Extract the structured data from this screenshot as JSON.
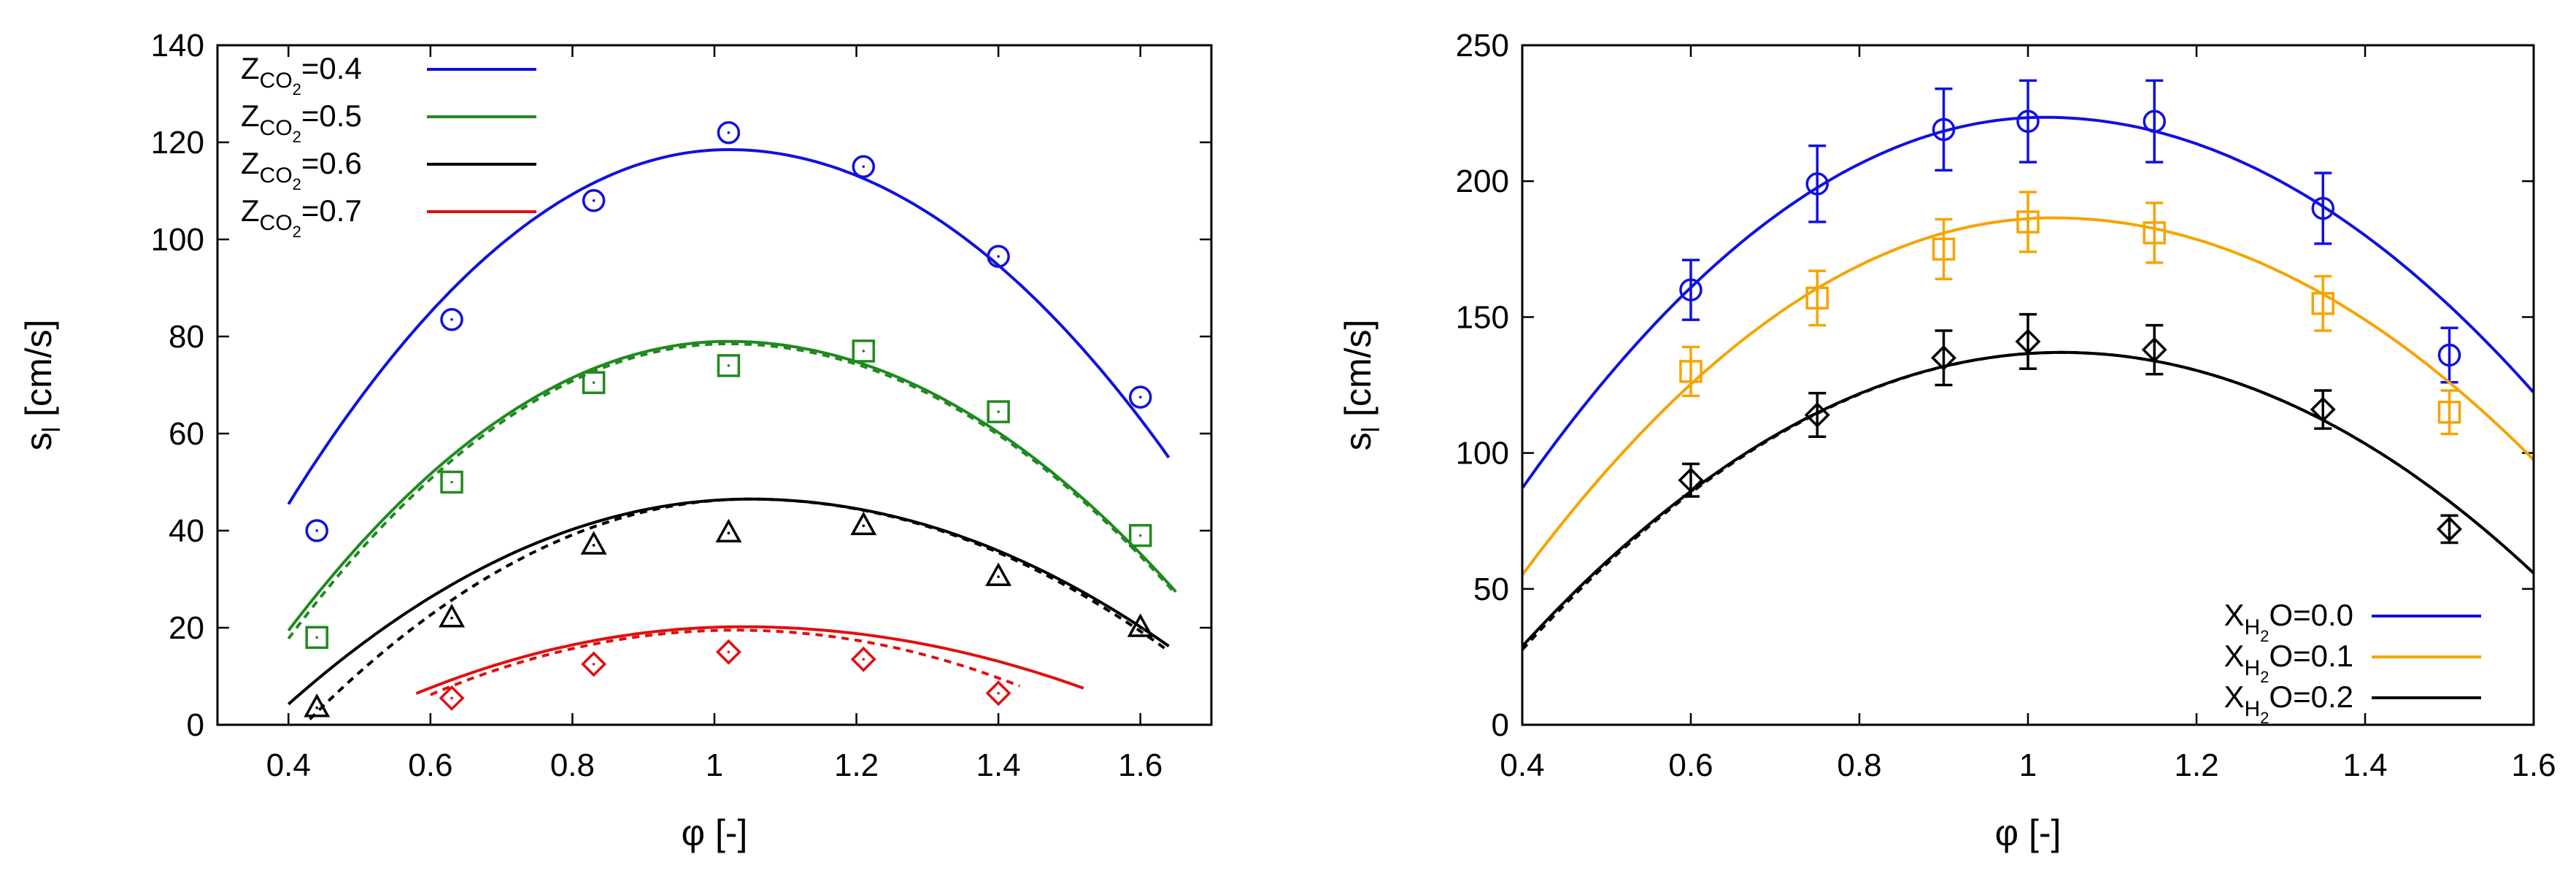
{
  "chart_data": [
    {
      "type": "line",
      "title": "",
      "xlabel": "φ [-]",
      "ylabel_main": "s",
      "ylabel_sub": "l",
      "ylabel_unit": " [cm/s]",
      "xlim": [
        0.3,
        1.7
      ],
      "ylim": [
        0,
        140
      ],
      "xticks": [
        "0.4",
        "0.6",
        "0.8",
        "1",
        "1.2",
        "1.4",
        "1.6"
      ],
      "yticks": [
        "0",
        "20",
        "40",
        "60",
        "80",
        "100",
        "120",
        "140"
      ],
      "legend_position": "top-left",
      "series": [
        {
          "name": "Z_CO2=0.4",
          "legend_pre": "Z",
          "legend_sub": "CO",
          "legend_subsub": "2",
          "legend_post": "=0.4",
          "color": "#1010e0",
          "marker": "circle",
          "fit": {
            "peak_x": 1.02,
            "peak_y": 118.5,
            "curv_left": 190,
            "curv_right": 165,
            "x_range": [
              0.4,
              1.64
            ]
          },
          "dashed_fit": null,
          "points": [
            [
              0.44,
              40
            ],
            [
              0.63,
              83.5
            ],
            [
              0.83,
              108
            ],
            [
              1.02,
              122
            ],
            [
              1.21,
              115
            ],
            [
              1.4,
              96.5
            ],
            [
              1.6,
              67.5
            ]
          ]
        },
        {
          "name": "Z_CO2=0.5",
          "legend_pre": "Z",
          "legend_sub": "CO",
          "legend_subsub": "2",
          "legend_post": "=0.5",
          "color": "#208a20",
          "marker": "square",
          "fit": {
            "peak_x": 1.02,
            "peak_y": 79,
            "curv_left": 155,
            "curv_right": 130,
            "x_range": [
              0.4,
              1.65
            ]
          },
          "dashed_fit": {
            "peak_x": 1.02,
            "peak_y": 78.5,
            "curv_left": 158,
            "curv_right": 130,
            "x_range": [
              0.4,
              1.65
            ]
          },
          "points": [
            [
              0.44,
              18
            ],
            [
              0.63,
              50
            ],
            [
              0.83,
              70.5
            ],
            [
              1.02,
              74
            ],
            [
              1.21,
              77
            ],
            [
              1.4,
              64.5
            ],
            [
              1.6,
              39
            ]
          ]
        },
        {
          "name": "Z_CO2=0.6",
          "legend_pre": "Z",
          "legend_sub": "CO",
          "legend_subsub": "2",
          "legend_post": "=0.6",
          "color": "#000000",
          "marker": "triangle",
          "fit": {
            "peak_x": 1.05,
            "peak_y": 46.5,
            "curv_left": 100,
            "curv_right": 87,
            "x_range": [
              0.4,
              1.64
            ]
          },
          "dashed_fit": {
            "peak_x": 1.05,
            "peak_y": 46.5,
            "curv_left": 118,
            "curv_right": 90,
            "x_range": [
              0.43,
              1.64
            ]
          },
          "points": [
            [
              0.44,
              3.5
            ],
            [
              0.63,
              22
            ],
            [
              0.83,
              37
            ],
            [
              1.02,
              39.5
            ],
            [
              1.21,
              41
            ],
            [
              1.4,
              30.5
            ],
            [
              1.6,
              20
            ]
          ]
        },
        {
          "name": "Z_CO2=0.7",
          "legend_pre": "Z",
          "legend_sub": "CO",
          "legend_subsub": "2",
          "legend_post": "=0.7",
          "color": "#e01010",
          "marker": "diamond",
          "fit": {
            "peak_x": 1.04,
            "peak_y": 20.2,
            "curv_left": 65,
            "curv_right": 55,
            "x_range": [
              0.58,
              1.52
            ]
          },
          "dashed_fit": {
            "peak_x": 1.03,
            "peak_y": 19.5,
            "curv_left": 72,
            "curv_right": 72,
            "x_range": [
              0.6,
              1.43
            ]
          },
          "points": [
            [
              0.63,
              5.5
            ],
            [
              0.83,
              12.5
            ],
            [
              1.02,
              15
            ],
            [
              1.21,
              13.5
            ],
            [
              1.4,
              6.5
            ]
          ]
        }
      ]
    },
    {
      "type": "line",
      "title": "",
      "xlabel": "φ [-]",
      "ylabel_main": "s",
      "ylabel_sub": "l",
      "ylabel_unit": " [cm/s]",
      "xlim": [
        0.4,
        1.6
      ],
      "ylim": [
        0,
        250
      ],
      "xticks": [
        "0.4",
        "0.6",
        "0.8",
        "1",
        "1.2",
        "1.4",
        "1.6"
      ],
      "yticks": [
        "0",
        "50",
        "100",
        "150",
        "200",
        "250"
      ],
      "legend_position": "bottom-right",
      "series": [
        {
          "name": "X_H2O=0.0",
          "legend_pre": "X",
          "legend_sub": "H",
          "legend_subsub": "2",
          "legend_post": "O=0.0",
          "color": "#1010e0",
          "marker": "circle",
          "fit": {
            "peak_x": 1.02,
            "peak_y": 223.5,
            "curv_left": 355,
            "curv_right": 301,
            "x_range": [
              0.4,
              1.6
            ]
          },
          "dashed_fit": null,
          "points": [
            {
              "x": 0.6,
              "y": 160,
              "err": 11
            },
            {
              "x": 0.75,
              "y": 199,
              "err": 14
            },
            {
              "x": 0.9,
              "y": 219,
              "err": 15
            },
            {
              "x": 1.0,
              "y": 222,
              "err": 15
            },
            {
              "x": 1.15,
              "y": 222,
              "err": 15
            },
            {
              "x": 1.35,
              "y": 190,
              "err": 13
            },
            {
              "x": 1.5,
              "y": 136,
              "err": 10
            }
          ]
        },
        {
          "name": "X_H2O=0.1",
          "legend_pre": "X",
          "legend_sub": "H",
          "legend_subsub": "2",
          "legend_post": "O=0.1",
          "color": "#f5a400",
          "marker": "square",
          "fit": {
            "peak_x": 1.03,
            "peak_y": 186.5,
            "curv_left": 331,
            "curv_right": 274,
            "x_range": [
              0.4,
              1.6
            ]
          },
          "dashed_fit": null,
          "points": [
            {
              "x": 0.6,
              "y": 130,
              "err": 9
            },
            {
              "x": 0.75,
              "y": 157,
              "err": 10
            },
            {
              "x": 0.9,
              "y": 175,
              "err": 11
            },
            {
              "x": 1.0,
              "y": 185,
              "err": 11
            },
            {
              "x": 1.15,
              "y": 181,
              "err": 11
            },
            {
              "x": 1.35,
              "y": 155,
              "err": 10
            },
            {
              "x": 1.5,
              "y": 115,
              "err": 8
            }
          ]
        },
        {
          "name": "X_H2O=0.2",
          "legend_pre": "X",
          "legend_sub": "H",
          "legend_subsub": "2",
          "legend_post": "O=0.2",
          "color": "#000000",
          "marker": "diamond",
          "fit": {
            "peak_x": 1.04,
            "peak_y": 137,
            "curv_left": 264,
            "curv_right": 259,
            "x_range": [
              0.4,
              1.6
            ]
          },
          "dashed_fit": {
            "peak_x": 1.04,
            "peak_y": 137,
            "curv_left": 267,
            "curv_right": 259,
            "x_range": [
              0.4,
              1.6
            ]
          },
          "points": [
            {
              "x": 0.6,
              "y": 90,
              "err": 6
            },
            {
              "x": 0.75,
              "y": 114,
              "err": 8
            },
            {
              "x": 0.9,
              "y": 135,
              "err": 10
            },
            {
              "x": 1.0,
              "y": 141,
              "err": 10
            },
            {
              "x": 1.15,
              "y": 138,
              "err": 9
            },
            {
              "x": 1.35,
              "y": 116,
              "err": 7
            },
            {
              "x": 1.5,
              "y": 72,
              "err": 5
            }
          ]
        }
      ]
    }
  ]
}
